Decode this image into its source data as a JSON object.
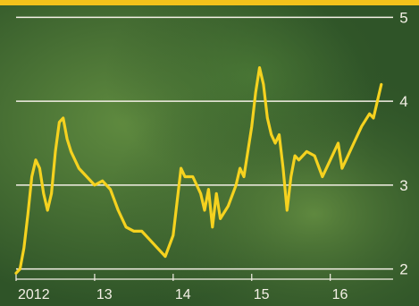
{
  "chart_data": {
    "type": "line",
    "title": "",
    "xlabel": "",
    "ylabel": "",
    "x_ticks": [
      "2012",
      "13",
      "14",
      "15",
      "16"
    ],
    "y_ticks": [
      2,
      3,
      4,
      5
    ],
    "ylim": [
      1.9,
      5.1
    ],
    "xlim": [
      2012.0,
      2016.8
    ],
    "grid": true,
    "colors": {
      "line": "#f5d21f",
      "grid": "#f4f0e6",
      "text": "#f4f0e6",
      "background": "#3f6a33",
      "top_bar": "#f3c21b"
    },
    "series": [
      {
        "values": [
          [
            2012.0,
            1.95
          ],
          [
            2012.05,
            2.0
          ],
          [
            2012.1,
            2.25
          ],
          [
            2012.15,
            2.65
          ],
          [
            2012.2,
            3.1
          ],
          [
            2012.25,
            3.3
          ],
          [
            2012.3,
            3.2
          ],
          [
            2012.35,
            2.9
          ],
          [
            2012.4,
            2.7
          ],
          [
            2012.45,
            2.9
          ],
          [
            2012.5,
            3.4
          ],
          [
            2012.55,
            3.75
          ],
          [
            2012.6,
            3.8
          ],
          [
            2012.65,
            3.55
          ],
          [
            2012.7,
            3.4
          ],
          [
            2012.8,
            3.2
          ],
          [
            2012.9,
            3.1
          ],
          [
            2013.0,
            3.0
          ],
          [
            2013.1,
            3.05
          ],
          [
            2013.2,
            2.95
          ],
          [
            2013.3,
            2.7
          ],
          [
            2013.4,
            2.5
          ],
          [
            2013.5,
            2.45
          ],
          [
            2013.6,
            2.45
          ],
          [
            2013.7,
            2.35
          ],
          [
            2013.8,
            2.25
          ],
          [
            2013.9,
            2.15
          ],
          [
            2014.0,
            2.4
          ],
          [
            2014.05,
            2.8
          ],
          [
            2014.1,
            3.2
          ],
          [
            2014.15,
            3.1
          ],
          [
            2014.25,
            3.1
          ],
          [
            2014.35,
            2.9
          ],
          [
            2014.4,
            2.7
          ],
          [
            2014.45,
            2.95
          ],
          [
            2014.5,
            2.5
          ],
          [
            2014.55,
            2.9
          ],
          [
            2014.6,
            2.6
          ],
          [
            2014.7,
            2.75
          ],
          [
            2014.8,
            3.0
          ],
          [
            2014.85,
            3.2
          ],
          [
            2014.9,
            3.1
          ],
          [
            2014.95,
            3.4
          ],
          [
            2015.0,
            3.7
          ],
          [
            2015.05,
            4.1
          ],
          [
            2015.1,
            4.4
          ],
          [
            2015.15,
            4.2
          ],
          [
            2015.2,
            3.8
          ],
          [
            2015.25,
            3.6
          ],
          [
            2015.3,
            3.5
          ],
          [
            2015.35,
            3.6
          ],
          [
            2015.4,
            3.2
          ],
          [
            2015.45,
            2.7
          ],
          [
            2015.5,
            3.1
          ],
          [
            2015.55,
            3.35
          ],
          [
            2015.6,
            3.3
          ],
          [
            2015.7,
            3.4
          ],
          [
            2015.8,
            3.35
          ],
          [
            2015.9,
            3.1
          ],
          [
            2016.0,
            3.3
          ],
          [
            2016.1,
            3.5
          ],
          [
            2016.15,
            3.2
          ],
          [
            2016.2,
            3.3
          ],
          [
            2016.3,
            3.5
          ],
          [
            2016.4,
            3.7
          ],
          [
            2016.5,
            3.85
          ],
          [
            2016.55,
            3.8
          ],
          [
            2016.6,
            4.0
          ],
          [
            2016.65,
            4.2
          ]
        ]
      }
    ]
  }
}
